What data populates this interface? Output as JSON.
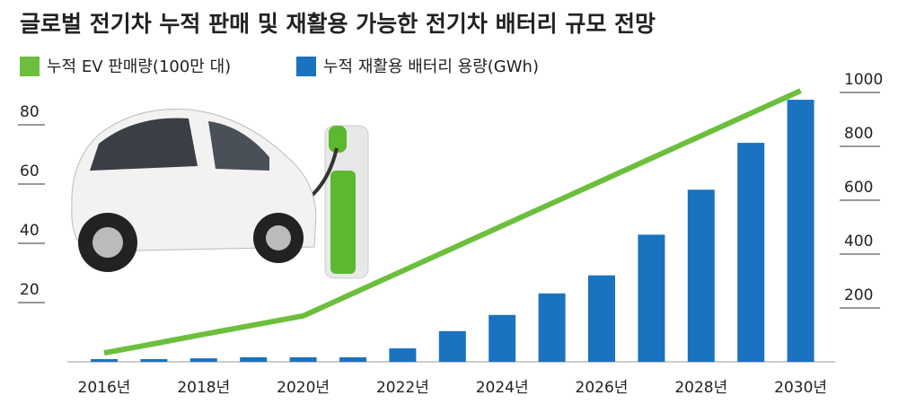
{
  "chart_data": {
    "type": "bar-line",
    "title": "글로벌 전기차 누적 판매 및 재활용 가능한 전기차 배터리 규모 전망",
    "categories": [
      "2016년",
      null,
      "2018년",
      null,
      "2020년",
      null,
      "2022년",
      null,
      "2024년",
      null,
      "2026년",
      null,
      "2028년",
      null,
      "2030년"
    ],
    "series": [
      {
        "name": "누적 EV 판매량(100만 대)",
        "type": "line",
        "color": "#6cbf3c",
        "axis": "y",
        "values": [
          3,
          6.1,
          9.3,
          12.4,
          15.5,
          23.1,
          30.7,
          38.3,
          45.9,
          53.5,
          61.1,
          68.7,
          76.3,
          83.9,
          91.5
        ]
      },
      {
        "name": "누적 재활용 배터리 용량(GWh)",
        "type": "bar",
        "color": "#1a72c0",
        "axis": "y2",
        "values": [
          10,
          10,
          13,
          17,
          17,
          17,
          50,
          114,
          174,
          254,
          321,
          472,
          639,
          813,
          973
        ]
      }
    ],
    "ylim": [
      0,
      100
    ],
    "yticks": [
      20,
      40,
      60,
      80
    ],
    "y2lim": [
      0,
      1100
    ],
    "y2ticks": [
      200,
      400,
      600,
      800,
      1000
    ]
  }
}
